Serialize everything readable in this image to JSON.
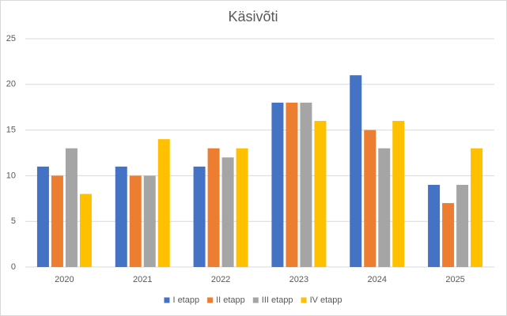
{
  "chart_data": {
    "type": "bar",
    "title": "Käsivõti",
    "categories": [
      "2020",
      "2021",
      "2022",
      "2023",
      "2024",
      "2025"
    ],
    "series": [
      {
        "name": "I etapp",
        "color": "#4472c4",
        "values": [
          11,
          11,
          11,
          18,
          21,
          9
        ]
      },
      {
        "name": "II etapp",
        "color": "#ed7d31",
        "values": [
          10,
          10,
          13,
          18,
          15,
          7
        ]
      },
      {
        "name": "III etapp",
        "color": "#a5a5a5",
        "values": [
          13,
          10,
          12,
          18,
          13,
          9
        ]
      },
      {
        "name": "IV etapp",
        "color": "#ffc000",
        "values": [
          8,
          14,
          13,
          16,
          16,
          13
        ]
      }
    ],
    "ylim": [
      0,
      25
    ],
    "yticks": [
      0,
      5,
      10,
      15,
      20,
      25
    ],
    "grid": true,
    "legend": "bottom"
  }
}
